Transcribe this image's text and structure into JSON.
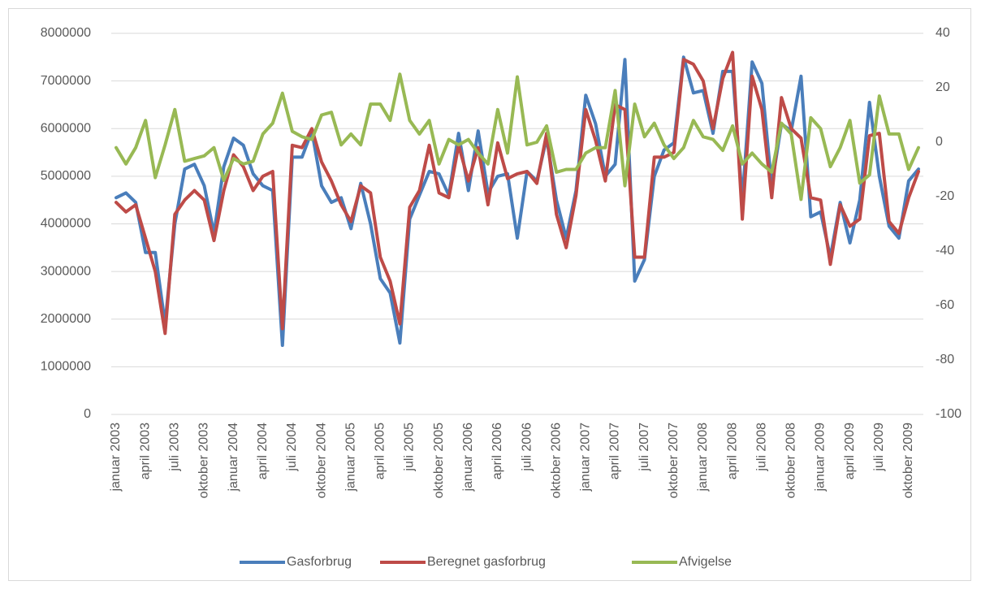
{
  "chart_data": {
    "type": "line",
    "categories": [
      "januar 2003",
      null,
      null,
      "april 2003",
      null,
      null,
      "juli 2003",
      null,
      null,
      "oktober 2003",
      null,
      null,
      "januar 2004",
      null,
      null,
      "april 2004",
      null,
      null,
      "juli 2004",
      null,
      null,
      "oktober 2004",
      null,
      null,
      "januar 2005",
      null,
      null,
      "april 2005",
      null,
      null,
      "juli 2005",
      null,
      null,
      "oktober 2005",
      null,
      null,
      "januar 2006",
      null,
      null,
      "april 2006",
      null,
      null,
      "juli 2006",
      null,
      null,
      "oktober 2006",
      null,
      null,
      "januar 2007",
      null,
      null,
      "april 2007",
      null,
      null,
      "juli 2007",
      null,
      null,
      "oktober 2007",
      null,
      null,
      "januar 2008",
      null,
      null,
      "april 2008",
      null,
      null,
      "juli 2008",
      null,
      null,
      "oktober 2008",
      null,
      null,
      "januar 2009",
      null,
      null,
      "april 2009",
      null,
      null,
      "juli 2009",
      null,
      null,
      "oktober 2009",
      null
    ],
    "series": [
      {
        "name": "Gasforbrug",
        "color": "#4a7ebb",
        "values": [
          4550000,
          4650000,
          4450000,
          3400000,
          3400000,
          1900000,
          4000000,
          5150000,
          5250000,
          4800000,
          3800000,
          5200000,
          5800000,
          5650000,
          5050000,
          4800000,
          4700000,
          1450000,
          5400000,
          5400000,
          5950000,
          4800000,
          4450000,
          4550000,
          3900000,
          4850000,
          4000000,
          2850000,
          2550000,
          1500000,
          4100000,
          4600000,
          5100000,
          5050000,
          4600000,
          5900000,
          4700000,
          5950000,
          4650000,
          5000000,
          5050000,
          3700000,
          5100000,
          4900000,
          5800000,
          4500000,
          3700000,
          4700000,
          6700000,
          6100000,
          5000000,
          5250000,
          7450000,
          2800000,
          3250000,
          5000000,
          5550000,
          5700000,
          7500000,
          6750000,
          6800000,
          5900000,
          7200000,
          7200000,
          4500000,
          7400000,
          6950000,
          4800000,
          6100000,
          5950000,
          7100000,
          4150000,
          4250000,
          3300000,
          4450000,
          3600000,
          4500000,
          6550000,
          5000000,
          3950000,
          3700000,
          4900000,
          5150000
        ]
      },
      {
        "name": "Beregnet gasforbrug",
        "color": "#be4b48",
        "values": [
          4450000,
          4250000,
          4400000,
          3700000,
          3000000,
          1700000,
          4200000,
          4500000,
          4700000,
          4500000,
          3650000,
          4700000,
          5450000,
          5200000,
          4700000,
          5000000,
          5100000,
          1800000,
          5650000,
          5600000,
          6000000,
          5300000,
          4900000,
          4400000,
          4050000,
          4800000,
          4650000,
          3300000,
          2800000,
          1900000,
          4350000,
          4700000,
          5650000,
          4650000,
          4550000,
          5650000,
          4900000,
          5600000,
          4400000,
          5700000,
          4950000,
          5050000,
          5100000,
          4850000,
          5900000,
          4200000,
          3500000,
          4600000,
          6400000,
          5750000,
          4900000,
          6500000,
          6400000,
          3300000,
          3300000,
          5400000,
          5400000,
          5500000,
          7450000,
          7350000,
          7000000,
          6000000,
          7050000,
          7600000,
          4100000,
          7100000,
          6400000,
          4550000,
          6650000,
          6000000,
          5800000,
          4550000,
          4500000,
          3150000,
          4400000,
          3950000,
          4100000,
          5850000,
          5900000,
          4050000,
          3800000,
          4550000,
          5100000
        ]
      },
      {
        "name": "Afvigelse",
        "color": "#98b954",
        "axis": "y2",
        "values": [
          -2,
          -8,
          -2,
          8,
          -13,
          -1,
          12,
          -7,
          -6,
          -5,
          -2,
          -14,
          -6,
          -8,
          -7,
          3,
          7,
          18,
          4,
          2,
          1,
          10,
          11,
          -1,
          3,
          -1,
          14,
          14,
          8,
          25,
          8,
          3,
          8,
          -8,
          1,
          -1,
          1,
          -4,
          -8,
          12,
          -4,
          24,
          -1,
          0,
          6,
          -11,
          -10,
          -10,
          -4,
          -2,
          -2,
          19,
          -16,
          14,
          2,
          7,
          -1,
          -6,
          -2,
          8,
          2,
          1,
          -3,
          6,
          -8,
          -4,
          -8,
          -11,
          7,
          3,
          -21,
          9,
          5,
          -9,
          -2,
          8,
          -15,
          -12,
          17,
          3,
          3,
          -10,
          -2
        ]
      }
    ],
    "ylim": [
      0,
      8000000
    ],
    "yticks": [
      0,
      1000000,
      2000000,
      3000000,
      4000000,
      5000000,
      6000000,
      7000000,
      8000000
    ],
    "y2lim": [
      -100,
      40
    ],
    "y2ticks": [
      -100,
      -80,
      -60,
      -40,
      -20,
      0,
      20,
      40
    ],
    "grid": true,
    "legend": "bottom"
  }
}
